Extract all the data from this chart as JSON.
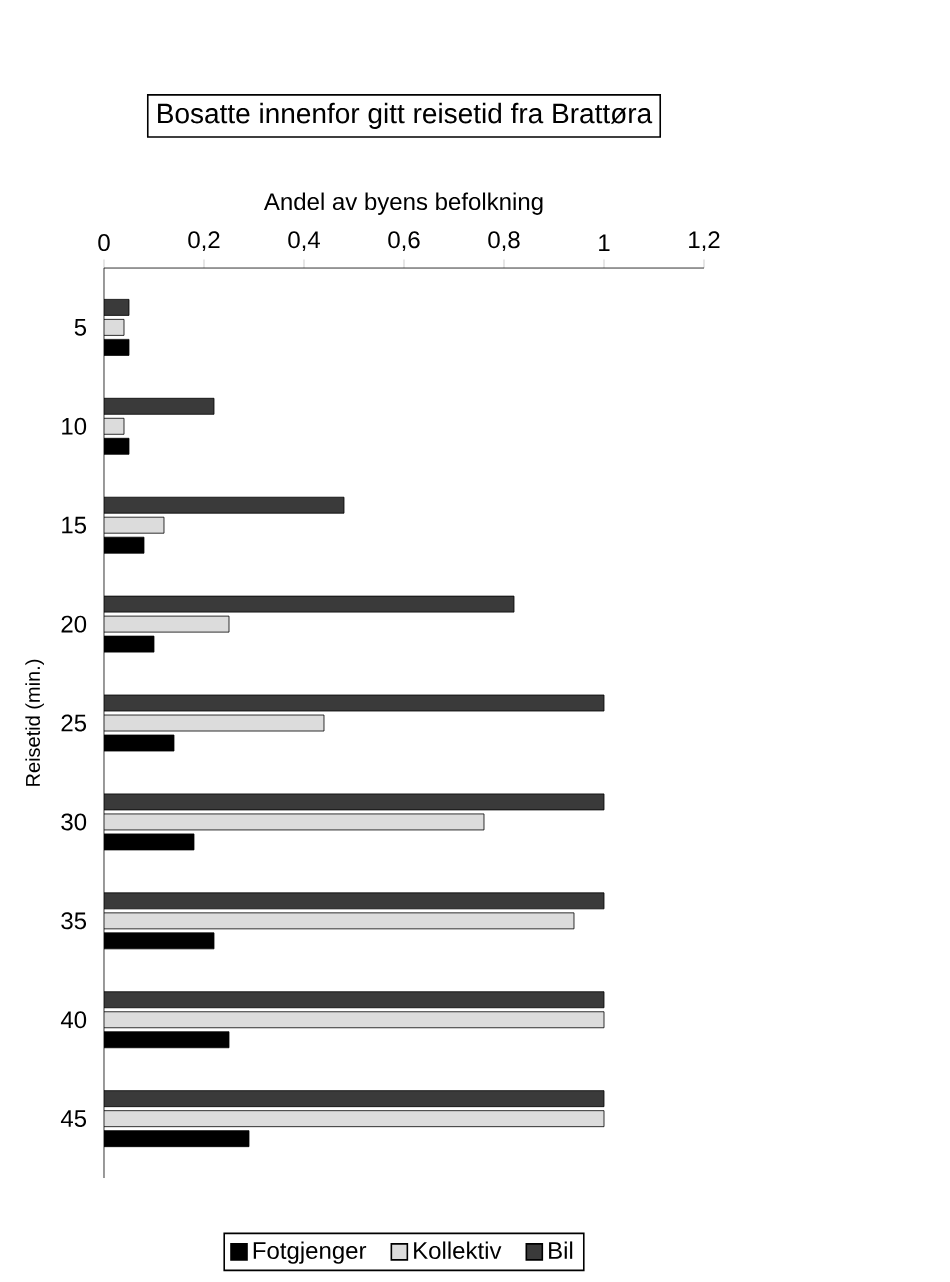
{
  "chart_data": {
    "type": "bar",
    "orientation": "horizontal",
    "title": "Bosatte innenfor gitt reisetid fra Brattøra",
    "xlabel": "Andel av byens befolkning",
    "ylabel": "Reisetid (min.)",
    "categories": [
      "5",
      "10",
      "15",
      "20",
      "25",
      "30",
      "35",
      "40",
      "45"
    ],
    "series": [
      {
        "name": "Fotgjenger",
        "color": "#000000",
        "values": [
          0.05,
          0.05,
          0.08,
          0.1,
          0.14,
          0.18,
          0.22,
          0.25,
          0.29
        ]
      },
      {
        "name": "Kollektiv",
        "color": "#dcdcdc",
        "values": [
          0.04,
          0.04,
          0.12,
          0.25,
          0.44,
          0.76,
          0.94,
          1.0,
          1.0
        ]
      },
      {
        "name": "Bil",
        "color": "#3a3a3a",
        "values": [
          0.05,
          0.22,
          0.48,
          0.82,
          1.0,
          1.0,
          1.0,
          1.0,
          1.0
        ]
      }
    ],
    "xlim": [
      0,
      1.2
    ],
    "xticks": [
      0,
      {
        "value": 0.2,
        "label": "0,2"
      },
      {
        "value": 0.4,
        "label": "0,4"
      },
      {
        "value": 0.6,
        "label": "0,6"
      },
      {
        "value": 0.8,
        "label": "0,8"
      },
      1,
      {
        "value": 1.2,
        "label": "1,2"
      }
    ],
    "legend": "bottom",
    "grid": false
  }
}
